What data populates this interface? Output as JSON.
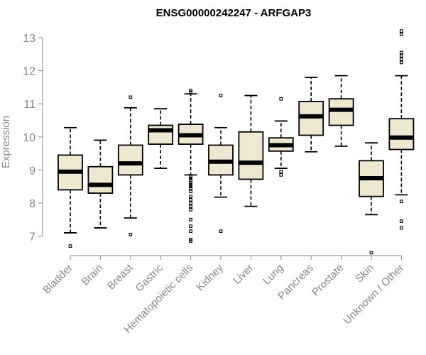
{
  "chart_data": {
    "type": "box",
    "title": "ENSG00000242247 - ARFGAP3",
    "xlabel": "",
    "ylabel": "Expression",
    "ylim": [
      6.4,
      13.3
    ],
    "yticks": [
      7,
      8,
      9,
      10,
      11,
      12,
      13
    ],
    "box_fill": "#efe8d0",
    "categories": [
      "Bladder",
      "Brain",
      "Breast",
      "Gastric",
      "Hematopoietic cells",
      "Kidney",
      "Liver",
      "Lung",
      "Pancreas",
      "Prostate",
      "Skin",
      "Unknown / Other"
    ],
    "boxes": [
      {
        "name": "Bladder",
        "whisker_low": 7.1,
        "q1": 8.4,
        "median": 8.95,
        "q3": 9.45,
        "whisker_high": 10.28,
        "outliers": [
          6.7
        ]
      },
      {
        "name": "Brain",
        "whisker_low": 7.25,
        "q1": 8.3,
        "median": 8.55,
        "q3": 9.1,
        "whisker_high": 9.9,
        "outliers": []
      },
      {
        "name": "Breast",
        "whisker_low": 7.55,
        "q1": 8.85,
        "median": 9.2,
        "q3": 9.75,
        "whisker_high": 10.88,
        "outliers": [
          7.05,
          11.2
        ]
      },
      {
        "name": "Gastric",
        "whisker_low": 9.05,
        "q1": 9.78,
        "median": 10.2,
        "q3": 10.35,
        "whisker_high": 10.85,
        "outliers": []
      },
      {
        "name": "Hematopoietic cells",
        "whisker_low": 8.85,
        "q1": 9.78,
        "median": 10.05,
        "q3": 10.38,
        "whisker_high": 11.3,
        "outliers": [
          6.85,
          6.9,
          7.15,
          7.3,
          7.5,
          7.8,
          7.9,
          8.0,
          8.1,
          8.2,
          8.35,
          8.45,
          8.5,
          8.55,
          8.6,
          8.7,
          8.75,
          8.8,
          11.35,
          11.4
        ]
      },
      {
        "name": "Kidney",
        "whisker_low": 8.18,
        "q1": 8.85,
        "median": 9.25,
        "q3": 9.75,
        "whisker_high": 10.28,
        "outliers": [
          7.15,
          11.25
        ]
      },
      {
        "name": "Liver",
        "whisker_low": 7.9,
        "q1": 8.72,
        "median": 9.22,
        "q3": 10.15,
        "whisker_high": 11.25,
        "outliers": []
      },
      {
        "name": "Lung",
        "whisker_low": 9.05,
        "q1": 9.57,
        "median": 9.75,
        "q3": 9.97,
        "whisker_high": 10.48,
        "outliers": [
          8.85,
          8.95,
          11.15
        ]
      },
      {
        "name": "Pancreas",
        "whisker_low": 9.55,
        "q1": 10.05,
        "median": 10.62,
        "q3": 11.07,
        "whisker_high": 11.8,
        "outliers": []
      },
      {
        "name": "Prostate",
        "whisker_low": 9.72,
        "q1": 10.35,
        "median": 10.82,
        "q3": 11.15,
        "whisker_high": 11.85,
        "outliers": []
      },
      {
        "name": "Skin",
        "whisker_low": 7.65,
        "q1": 8.2,
        "median": 8.75,
        "q3": 9.28,
        "whisker_high": 9.82,
        "outliers": [
          6.5
        ]
      },
      {
        "name": "Unknown / Other",
        "whisker_low": 8.25,
        "q1": 9.62,
        "median": 9.98,
        "q3": 10.55,
        "whisker_high": 11.85,
        "outliers": [
          7.25,
          7.45,
          8.05,
          12.25,
          12.35,
          12.45,
          12.55,
          13.1,
          13.2
        ]
      }
    ]
  }
}
